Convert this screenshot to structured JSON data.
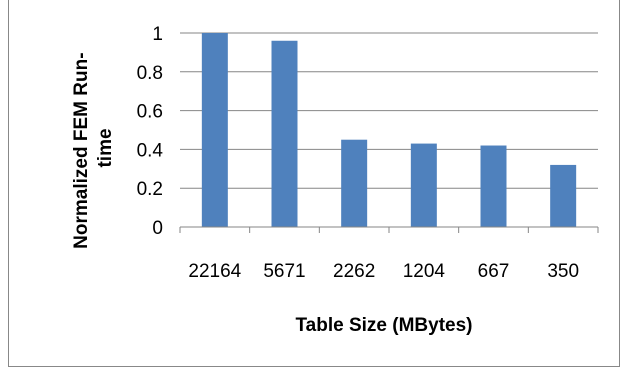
{
  "chart_data": {
    "type": "bar",
    "categories": [
      "22164",
      "5671",
      "2262",
      "1204",
      "667",
      "350"
    ],
    "values": [
      1.0,
      0.96,
      0.45,
      0.43,
      0.42,
      0.32
    ],
    "title": "",
    "xlabel": "Table Size (MBytes)",
    "ylabel_lines": [
      "Normalized FEM Run-",
      "time"
    ],
    "ylim": [
      0,
      1
    ],
    "yticks": [
      "0",
      "0.2",
      "0.4",
      "0.6",
      "0.8",
      "1"
    ],
    "grid": true,
    "legend": "none",
    "bar_color": "#4f81bd",
    "grid_color": "#868686"
  }
}
